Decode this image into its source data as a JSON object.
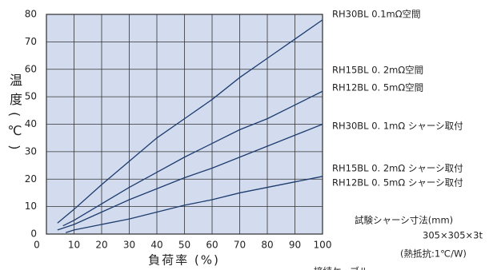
{
  "chart_data": {
    "type": "line",
    "xlabel": "負荷率 (%)",
    "ylabel": "温度(℃)",
    "xlim": [
      0,
      100
    ],
    "xticks": [
      0,
      10,
      20,
      30,
      40,
      50,
      60,
      70,
      80,
      90,
      100
    ],
    "ylim": [
      0,
      80
    ],
    "yticks": [
      0,
      10,
      20,
      30,
      40,
      50,
      60,
      70,
      80
    ],
    "grid": true,
    "plot_background": "#d3dcef",
    "series": [
      {
        "labels": [
          "RH30BL 0.1mΩ空間"
        ],
        "color": "#1d3c6e",
        "x": [
          4,
          10,
          20,
          30,
          40,
          50,
          60,
          70,
          80,
          90,
          100
        ],
        "values": [
          4,
          9,
          18,
          26.5,
          35,
          42,
          49,
          57,
          64,
          71,
          78
        ]
      },
      {
        "labels": [
          "RH15BL 0. 2mΩ空間",
          "RH12BL 0. 5mΩ空間"
        ],
        "color": "#1d3c6e",
        "x": [
          6,
          10,
          20,
          30,
          40,
          50,
          60,
          70,
          80,
          90,
          100
        ],
        "values": [
          3,
          5,
          11,
          17,
          22.5,
          28,
          33,
          38,
          42,
          47,
          52
        ]
      },
      {
        "labels": [
          "RH30BL 0. 1mΩ シャーシ取付"
        ],
        "color": "#1d3c6e",
        "x": [
          4,
          10,
          20,
          30,
          40,
          50,
          60,
          70,
          80,
          90,
          100
        ],
        "values": [
          1.5,
          3.5,
          8,
          12.5,
          16.5,
          20.5,
          24,
          28,
          32,
          36,
          40
        ]
      },
      {
        "labels": [
          "RH15BL 0. 2mΩ シャーシ取付",
          "RH12BL 0. 5mΩ シャーシ取付"
        ],
        "color": "#1d3c6e",
        "x": [
          7,
          10,
          20,
          30,
          40,
          50,
          60,
          70,
          80,
          90,
          100
        ],
        "values": [
          0.5,
          1.5,
          3.5,
          5.5,
          8,
          10.5,
          12.5,
          15,
          17,
          19,
          21
        ]
      }
    ],
    "notes": [
      "試験シャーシ寸法(mm)",
      "305×305×3t",
      "(熱抵抗:1℃/W)",
      "接続ケーブル"
    ]
  }
}
